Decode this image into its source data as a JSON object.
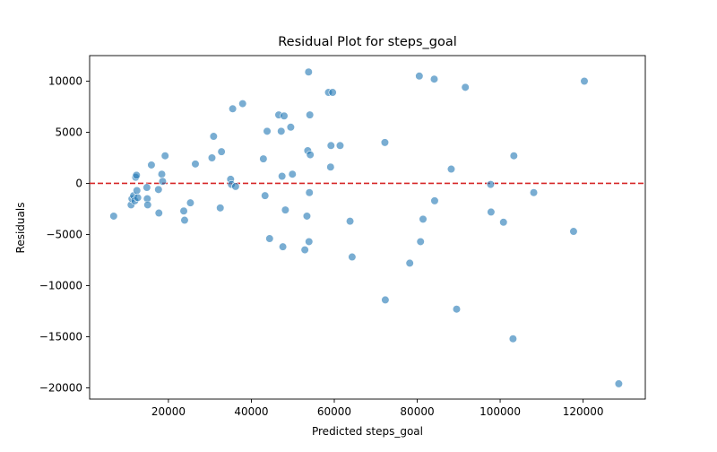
{
  "chart_data": {
    "type": "scatter",
    "title": "Residual Plot for steps_goal",
    "xlabel": "Predicted steps_goal",
    "ylabel": "Residuals",
    "xlim": [
      1000,
      135000
    ],
    "ylim": [
      -21100,
      12500
    ],
    "xticks": [
      20000,
      40000,
      60000,
      80000,
      100000,
      120000
    ],
    "xtick_labels": [
      "20000",
      "40000",
      "60000",
      "80000",
      "100000",
      "120000"
    ],
    "yticks": [
      -20000,
      -15000,
      -10000,
      -5000,
      0,
      5000,
      10000
    ],
    "ytick_labels": [
      "−20000",
      "−15000",
      "−10000",
      "−5000",
      "0",
      "5000",
      "10000"
    ],
    "grid": false,
    "reference_line": {
      "y": 0,
      "color": "#d62728",
      "style": "dashed"
    },
    "point_color": "#1f77b4",
    "points": [
      {
        "x": 6800,
        "y": -3200
      },
      {
        "x": 11000,
        "y": -2100
      },
      {
        "x": 11200,
        "y": -1500
      },
      {
        "x": 11600,
        "y": -1200
      },
      {
        "x": 11900,
        "y": -1700
      },
      {
        "x": 12100,
        "y": 600
      },
      {
        "x": 12300,
        "y": 800
      },
      {
        "x": 12400,
        "y": -700
      },
      {
        "x": 12600,
        "y": -1400
      },
      {
        "x": 14800,
        "y": -400
      },
      {
        "x": 14900,
        "y": -1500
      },
      {
        "x": 15000,
        "y": -2100
      },
      {
        "x": 15900,
        "y": 1800
      },
      {
        "x": 17600,
        "y": -600
      },
      {
        "x": 17700,
        "y": -2900
      },
      {
        "x": 18400,
        "y": 900
      },
      {
        "x": 18600,
        "y": 200
      },
      {
        "x": 19200,
        "y": 2700
      },
      {
        "x": 23700,
        "y": -2700
      },
      {
        "x": 23900,
        "y": -3600
      },
      {
        "x": 25300,
        "y": -1900
      },
      {
        "x": 26500,
        "y": 1900
      },
      {
        "x": 30500,
        "y": 2500
      },
      {
        "x": 30900,
        "y": 4600
      },
      {
        "x": 32500,
        "y": -2400
      },
      {
        "x": 32800,
        "y": 3100
      },
      {
        "x": 35000,
        "y": 400
      },
      {
        "x": 35200,
        "y": -100
      },
      {
        "x": 35500,
        "y": 7300
      },
      {
        "x": 36200,
        "y": -300
      },
      {
        "x": 37900,
        "y": 7800
      },
      {
        "x": 42900,
        "y": 2400
      },
      {
        "x": 43300,
        "y": -1200
      },
      {
        "x": 43800,
        "y": 5100
      },
      {
        "x": 44400,
        "y": -5400
      },
      {
        "x": 46600,
        "y": 6700
      },
      {
        "x": 47200,
        "y": 5100
      },
      {
        "x": 47400,
        "y": 700
      },
      {
        "x": 47600,
        "y": -6200
      },
      {
        "x": 47900,
        "y": 6600
      },
      {
        "x": 48200,
        "y": -2600
      },
      {
        "x": 49500,
        "y": 5500
      },
      {
        "x": 49900,
        "y": 900
      },
      {
        "x": 52900,
        "y": -6500
      },
      {
        "x": 53400,
        "y": -3200
      },
      {
        "x": 53600,
        "y": 3200
      },
      {
        "x": 53800,
        "y": 10900
      },
      {
        "x": 53900,
        "y": -5700
      },
      {
        "x": 54000,
        "y": -900
      },
      {
        "x": 54100,
        "y": 6700
      },
      {
        "x": 54200,
        "y": 2800
      },
      {
        "x": 58600,
        "y": 8900
      },
      {
        "x": 59100,
        "y": 1600
      },
      {
        "x": 59200,
        "y": 3700
      },
      {
        "x": 59600,
        "y": 8900
      },
      {
        "x": 61400,
        "y": 3700
      },
      {
        "x": 63800,
        "y": -3700
      },
      {
        "x": 64300,
        "y": -7200
      },
      {
        "x": 72200,
        "y": 4000
      },
      {
        "x": 72300,
        "y": -11400
      },
      {
        "x": 78200,
        "y": -7800
      },
      {
        "x": 80500,
        "y": 10500
      },
      {
        "x": 80800,
        "y": -5700
      },
      {
        "x": 81400,
        "y": -3500
      },
      {
        "x": 84100,
        "y": 10200
      },
      {
        "x": 84200,
        "y": -1700
      },
      {
        "x": 88200,
        "y": 1400
      },
      {
        "x": 89500,
        "y": -12300
      },
      {
        "x": 91600,
        "y": 9400
      },
      {
        "x": 97700,
        "y": -100
      },
      {
        "x": 97800,
        "y": -2800
      },
      {
        "x": 100800,
        "y": -3800
      },
      {
        "x": 103100,
        "y": -15200
      },
      {
        "x": 103300,
        "y": 2700
      },
      {
        "x": 108100,
        "y": -900
      },
      {
        "x": 117700,
        "y": -4700
      },
      {
        "x": 120300,
        "y": 10000
      },
      {
        "x": 128600,
        "y": -19600
      }
    ]
  }
}
